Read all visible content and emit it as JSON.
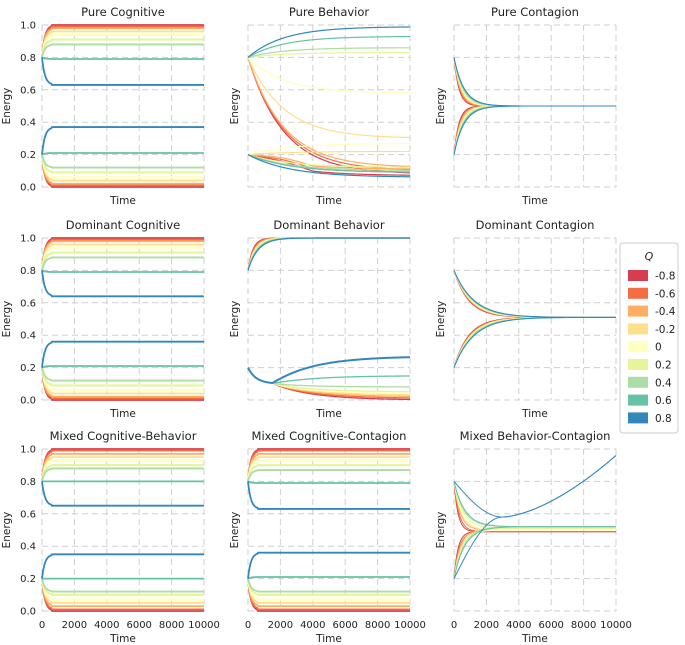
{
  "figure": {
    "x_ticks": [
      0,
      2000,
      4000,
      6000,
      8000,
      10000
    ],
    "y_ticks": [
      0.0,
      0.2,
      0.4,
      0.6,
      0.8,
      1.0
    ],
    "y_tick_labels": [
      "0.0",
      "0.2",
      "0.4",
      "0.6",
      "0.8",
      "1.0"
    ],
    "xlim": [
      0,
      10000
    ],
    "ylim": [
      0.0,
      1.0
    ]
  },
  "legend": {
    "title": "Q",
    "entries": [
      {
        "label": "-0.8",
        "color": "#d53e4f"
      },
      {
        "label": "-0.6",
        "color": "#f46d43"
      },
      {
        "label": "-0.4",
        "color": "#fdae61"
      },
      {
        "label": "-0.2",
        "color": "#fee08b"
      },
      {
        "label": "0",
        "color": "#ffffbf"
      },
      {
        "label": "0.2",
        "color": "#e6f598"
      },
      {
        "label": "0.4",
        "color": "#abdda4"
      },
      {
        "label": "0.6",
        "color": "#66c2a5"
      },
      {
        "label": "0.8",
        "color": "#3288bd"
      }
    ]
  },
  "chart_data": [
    {
      "type": "line",
      "title": "Pure Cognitive",
      "xlabel": "Time",
      "ylabel": "Energy",
      "xlim": [
        0,
        10000
      ],
      "ylim": [
        0,
        1
      ],
      "kind": "cog",
      "series": [
        {
          "name": "-0.8",
          "values": [
            0.0,
            1.0
          ]
        },
        {
          "name": "-0.6",
          "values": [
            0.01,
            0.99
          ]
        },
        {
          "name": "-0.4",
          "values": [
            0.02,
            0.98
          ]
        },
        {
          "name": "-0.2",
          "values": [
            0.04,
            0.96
          ]
        },
        {
          "name": "0",
          "values": [
            0.06,
            0.94
          ]
        },
        {
          "name": "0.2",
          "values": [
            0.09,
            0.91
          ]
        },
        {
          "name": "0.4",
          "values": [
            0.12,
            0.88
          ]
        },
        {
          "name": "0.6",
          "values": [
            0.21,
            0.79
          ]
        },
        {
          "name": "0.8",
          "values": [
            0.37,
            0.63
          ]
        }
      ]
    },
    {
      "type": "line",
      "title": "Pure Behavior",
      "xlabel": "Time",
      "ylabel": "Energy",
      "xlim": [
        0,
        10000
      ],
      "ylim": [
        0,
        1
      ],
      "kind": "pbeh",
      "series": [
        {
          "name": "-0.8",
          "values": [
            0.07,
            0.08
          ]
        },
        {
          "name": "-0.6",
          "values": [
            0.09,
            0.1
          ]
        },
        {
          "name": "-0.4",
          "values": [
            0.11,
            0.12
          ]
        },
        {
          "name": "-0.2",
          "values": [
            0.22,
            0.3
          ]
        },
        {
          "name": "0",
          "values": [
            0.27,
            0.58
          ]
        },
        {
          "name": "0.2",
          "values": [
            0.12,
            0.83
          ]
        },
        {
          "name": "0.4",
          "values": [
            0.1,
            0.86
          ]
        },
        {
          "name": "0.6",
          "values": [
            0.09,
            0.93
          ]
        },
        {
          "name": "0.8",
          "values": [
            0.06,
            0.99
          ]
        }
      ]
    },
    {
      "type": "line",
      "title": "Pure Contagion",
      "xlabel": "Time",
      "ylabel": "Energy",
      "xlim": [
        0,
        10000
      ],
      "ylim": [
        0,
        1
      ],
      "kind": "cont",
      "final": 0.5,
      "series": [
        {
          "name": "-0.8",
          "values": [
            0.5,
            0.5
          ]
        },
        {
          "name": "-0.6",
          "values": [
            0.5,
            0.5
          ]
        },
        {
          "name": "-0.4",
          "values": [
            0.5,
            0.5
          ]
        },
        {
          "name": "-0.2",
          "values": [
            0.5,
            0.5
          ]
        },
        {
          "name": "0",
          "values": [
            0.5,
            0.5
          ]
        },
        {
          "name": "0.2",
          "values": [
            0.5,
            0.5
          ]
        },
        {
          "name": "0.4",
          "values": [
            0.5,
            0.5
          ]
        },
        {
          "name": "0.6",
          "values": [
            0.5,
            0.5
          ]
        },
        {
          "name": "0.8",
          "values": [
            0.5,
            0.5
          ]
        }
      ]
    },
    {
      "type": "line",
      "title": "Dominant Cognitive",
      "xlabel": "Time",
      "ylabel": "Energy",
      "xlim": [
        0,
        10000
      ],
      "ylim": [
        0,
        1
      ],
      "kind": "cog",
      "series": [
        {
          "name": "-0.8",
          "values": [
            0.0,
            1.0
          ]
        },
        {
          "name": "-0.6",
          "values": [
            0.01,
            0.99
          ]
        },
        {
          "name": "-0.4",
          "values": [
            0.02,
            0.98
          ]
        },
        {
          "name": "-0.2",
          "values": [
            0.04,
            0.96
          ]
        },
        {
          "name": "0",
          "values": [
            0.06,
            0.94
          ]
        },
        {
          "name": "0.2",
          "values": [
            0.09,
            0.91
          ]
        },
        {
          "name": "0.4",
          "values": [
            0.12,
            0.88
          ]
        },
        {
          "name": "0.6",
          "values": [
            0.21,
            0.79
          ]
        },
        {
          "name": "0.8",
          "values": [
            0.36,
            0.64
          ]
        }
      ]
    },
    {
      "type": "line",
      "title": "Dominant Behavior",
      "xlabel": "Time",
      "ylabel": "Energy",
      "xlim": [
        0,
        10000
      ],
      "ylim": [
        0,
        1
      ],
      "kind": "dbeh",
      "series": [
        {
          "name": "-0.8",
          "values": [
            0.0,
            1.0
          ]
        },
        {
          "name": "-0.6",
          "values": [
            0.01,
            1.0
          ]
        },
        {
          "name": "-0.4",
          "values": [
            0.02,
            1.0
          ]
        },
        {
          "name": "-0.2",
          "values": [
            0.03,
            1.0
          ]
        },
        {
          "name": "0",
          "values": [
            0.04,
            1.0
          ]
        },
        {
          "name": "0.2",
          "values": [
            0.05,
            1.0
          ]
        },
        {
          "name": "0.4",
          "values": [
            0.08,
            1.0
          ]
        },
        {
          "name": "0.6",
          "values": [
            0.15,
            1.0
          ]
        },
        {
          "name": "0.8",
          "values": [
            0.27,
            1.0
          ]
        }
      ]
    },
    {
      "type": "line",
      "title": "Dominant Contagion",
      "xlabel": "Time",
      "ylabel": "Energy",
      "xlim": [
        0,
        10000
      ],
      "ylim": [
        0,
        1
      ],
      "kind": "cont",
      "final": 0.51,
      "series": [
        {
          "name": "-0.8",
          "values": [
            0.51,
            0.51
          ]
        },
        {
          "name": "-0.6",
          "values": [
            0.51,
            0.51
          ]
        },
        {
          "name": "-0.4",
          "values": [
            0.51,
            0.51
          ]
        },
        {
          "name": "-0.2",
          "values": [
            0.51,
            0.51
          ]
        },
        {
          "name": "0",
          "values": [
            0.51,
            0.51
          ]
        },
        {
          "name": "0.2",
          "values": [
            0.51,
            0.51
          ]
        },
        {
          "name": "0.4",
          "values": [
            0.51,
            0.51
          ]
        },
        {
          "name": "0.6",
          "values": [
            0.51,
            0.51
          ]
        },
        {
          "name": "0.8",
          "values": [
            0.51,
            0.51
          ]
        }
      ]
    },
    {
      "type": "line",
      "title": "Mixed Cognitive-Behavior",
      "xlabel": "Time",
      "ylabel": "Energy",
      "xlim": [
        0,
        10000
      ],
      "ylim": [
        0,
        1
      ],
      "kind": "cog",
      "series": [
        {
          "name": "-0.8",
          "values": [
            0.0,
            1.0
          ]
        },
        {
          "name": "-0.6",
          "values": [
            0.01,
            0.99
          ]
        },
        {
          "name": "-0.4",
          "values": [
            0.03,
            0.97
          ]
        },
        {
          "name": "-0.2",
          "values": [
            0.05,
            0.95
          ]
        },
        {
          "name": "0",
          "values": [
            0.07,
            0.93
          ]
        },
        {
          "name": "0.2",
          "values": [
            0.1,
            0.9
          ]
        },
        {
          "name": "0.4",
          "values": [
            0.12,
            0.88
          ]
        },
        {
          "name": "0.6",
          "values": [
            0.2,
            0.8
          ]
        },
        {
          "name": "0.8",
          "values": [
            0.35,
            0.65
          ]
        }
      ]
    },
    {
      "type": "line",
      "title": "Mixed Cognitive-Contagion",
      "xlabel": "Time",
      "ylabel": "Energy",
      "xlim": [
        0,
        10000
      ],
      "ylim": [
        0,
        1
      ],
      "kind": "cog",
      "series": [
        {
          "name": "-0.8",
          "values": [
            0.0,
            1.0
          ]
        },
        {
          "name": "-0.6",
          "values": [
            0.01,
            0.99
          ]
        },
        {
          "name": "-0.4",
          "values": [
            0.03,
            0.97
          ]
        },
        {
          "name": "-0.2",
          "values": [
            0.05,
            0.95
          ]
        },
        {
          "name": "0",
          "values": [
            0.07,
            0.93
          ]
        },
        {
          "name": "0.2",
          "values": [
            0.1,
            0.9
          ]
        },
        {
          "name": "0.4",
          "values": [
            0.12,
            0.87
          ]
        },
        {
          "name": "0.6",
          "values": [
            0.21,
            0.79
          ]
        },
        {
          "name": "0.8",
          "values": [
            0.36,
            0.63
          ]
        }
      ]
    },
    {
      "type": "line",
      "title": "Mixed Behavior-Contagion",
      "xlabel": "Time",
      "ylabel": "Energy",
      "xlim": [
        0,
        10000
      ],
      "ylim": [
        0,
        1
      ],
      "kind": "mbc",
      "series": [
        {
          "name": "-0.8",
          "values": [
            0.49,
            0.49
          ]
        },
        {
          "name": "-0.6",
          "values": [
            0.49,
            0.49
          ]
        },
        {
          "name": "-0.4",
          "values": [
            0.5,
            0.5
          ]
        },
        {
          "name": "-0.2",
          "values": [
            0.5,
            0.5
          ]
        },
        {
          "name": "0",
          "values": [
            0.5,
            0.5
          ]
        },
        {
          "name": "0.2",
          "values": [
            0.51,
            0.51
          ]
        },
        {
          "name": "0.4",
          "values": [
            0.52,
            0.52
          ]
        },
        {
          "name": "0.6",
          "values": [
            0.52,
            0.52
          ]
        },
        {
          "name": "0.8",
          "values": [
            0.58,
            0.96
          ]
        }
      ]
    }
  ]
}
